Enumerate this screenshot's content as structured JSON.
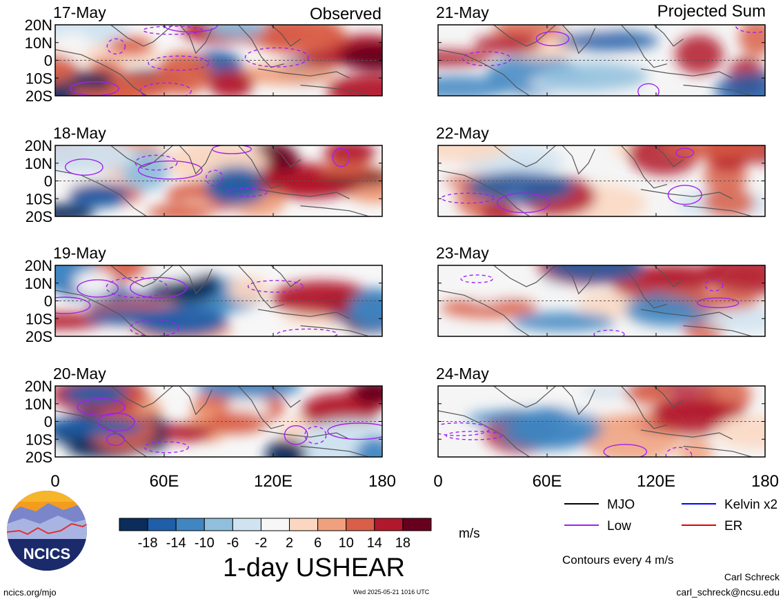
{
  "chart_data": {
    "type": "heatmap",
    "variable_title": "1-day USHEAR",
    "units": "m/s",
    "contour_note": "Contours every 4 m/s",
    "columns": [
      {
        "heading": "Observed",
        "dates": [
          "17-May",
          "18-May",
          "19-May",
          "20-May"
        ]
      },
      {
        "heading": "Projected Sum",
        "dates": [
          "21-May",
          "22-May",
          "23-May",
          "24-May"
        ]
      }
    ],
    "lat_ticks": [
      "20N",
      "10N",
      "0",
      "10S",
      "20S"
    ],
    "lon_ticks": [
      "0",
      "60E",
      "120E",
      "180"
    ],
    "lon_range": [
      0,
      180
    ],
    "lat_range": [
      -20,
      20
    ],
    "colorbar": {
      "tick_labels": [
        "-18",
        "-14",
        "-10",
        "-6",
        "-2",
        "2",
        "6",
        "10",
        "14",
        "18"
      ],
      "colors": [
        "#0a2d5c",
        "#1f5ea8",
        "#3f86c2",
        "#8fbfdd",
        "#cfe3f0",
        "#f7f7f7",
        "#fbd7c1",
        "#f0a07c",
        "#d95f48",
        "#b2182b",
        "#67001f"
      ]
    },
    "legend": [
      {
        "label": "MJO",
        "color": "#000000"
      },
      {
        "label": "Kelvin x2",
        "color": "#0000ff"
      },
      {
        "label": "Low",
        "color": "#a020f0"
      },
      {
        "label": "ER",
        "color": "#e00000"
      }
    ]
  },
  "footer": {
    "logo_text": "NCICS",
    "url": "ncics.org/mjo",
    "timestamp": "Wed 2025-05-21 1016 UTC",
    "author": "Carl Schreck",
    "email": "carl_schreck@ncsu.edu"
  }
}
